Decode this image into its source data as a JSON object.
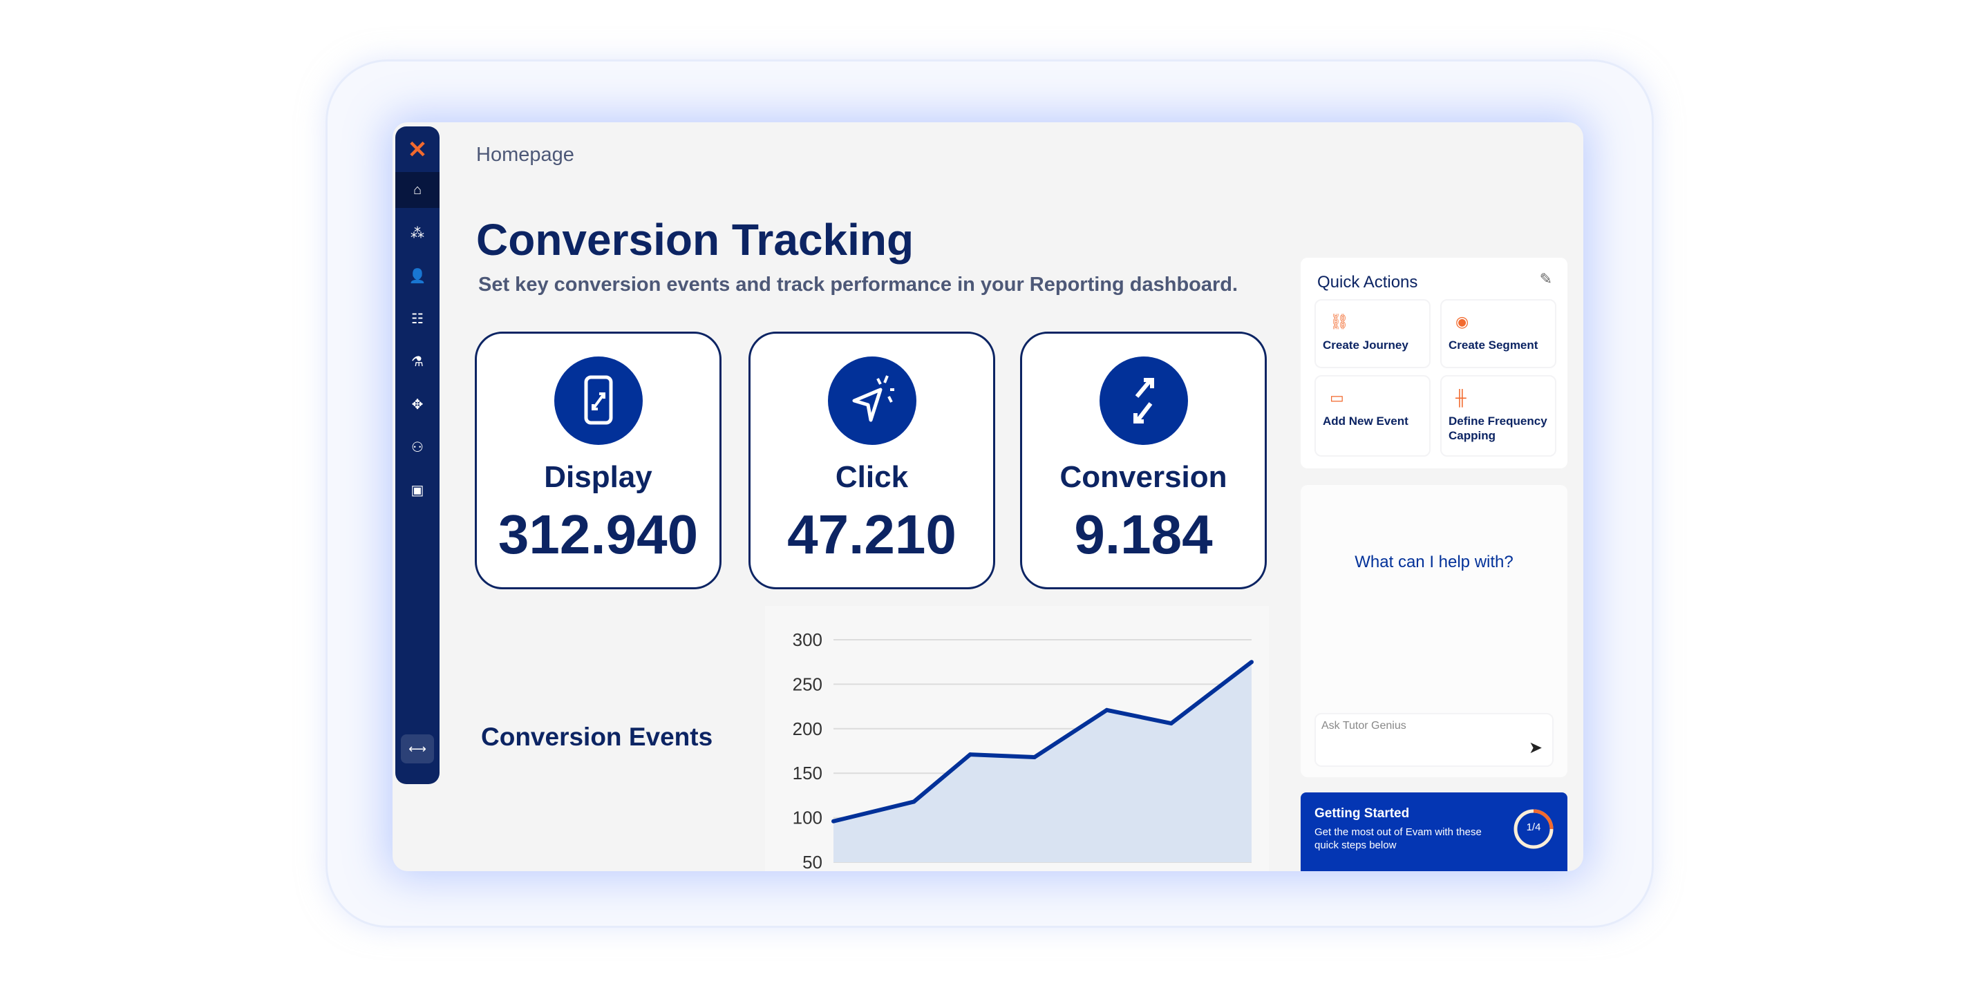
{
  "breadcrumb": "Homepage",
  "title": "Conversion Tracking",
  "subtitle": "Set key conversion events and track performance in your Reporting dashboard.",
  "sidebar": {
    "items": [
      "logo-icon",
      "home-icon",
      "audience-icon",
      "user-voice-icon",
      "sliders-icon",
      "lab-icon",
      "target-icon",
      "users-settings-icon",
      "campaign-icon",
      "expand-icon"
    ]
  },
  "cards": [
    {
      "label": "Display",
      "value": "312.940",
      "icon": "phone-resize-icon"
    },
    {
      "label": "Click",
      "value": "47.210",
      "icon": "cursor-click-icon"
    },
    {
      "label": "Conversion",
      "value": "9.184",
      "icon": "arrows-exchange-icon"
    }
  ],
  "events_label": "Conversion Events",
  "chart_data": {
    "type": "area",
    "title": "",
    "x": [
      0,
      1,
      1.7,
      2.5,
      3.4,
      4.2,
      5.2
    ],
    "values": [
      96,
      118,
      171,
      168,
      221,
      206,
      275
    ],
    "ylim": [
      50,
      300
    ],
    "yticks": [
      "300",
      "250",
      "200",
      "150",
      "100",
      "50"
    ],
    "grid": true,
    "line_color": "#023199",
    "fill_color": "#d9e3f2"
  },
  "quick_actions": {
    "title": "Quick Actions",
    "items": [
      {
        "label": "Create Journey",
        "icon": "journey-icon"
      },
      {
        "label": "Create Segment",
        "icon": "segment-icon"
      },
      {
        "label": "Add New Event",
        "icon": "calendar-icon"
      },
      {
        "label": "Define Frequency Capping",
        "icon": "frequency-icon"
      }
    ]
  },
  "chat": {
    "prompt": "What can I help with?",
    "placeholder": "Ask Tutor Genius"
  },
  "getting_started": {
    "title": "Getting Started",
    "text": "Get the most out of Evam with these quick steps below",
    "progress": "1/4",
    "progress_fraction": 0.25
  },
  "colors": {
    "navy": "#0c2463",
    "accent": "#023199",
    "orange": "#f26a2e"
  }
}
